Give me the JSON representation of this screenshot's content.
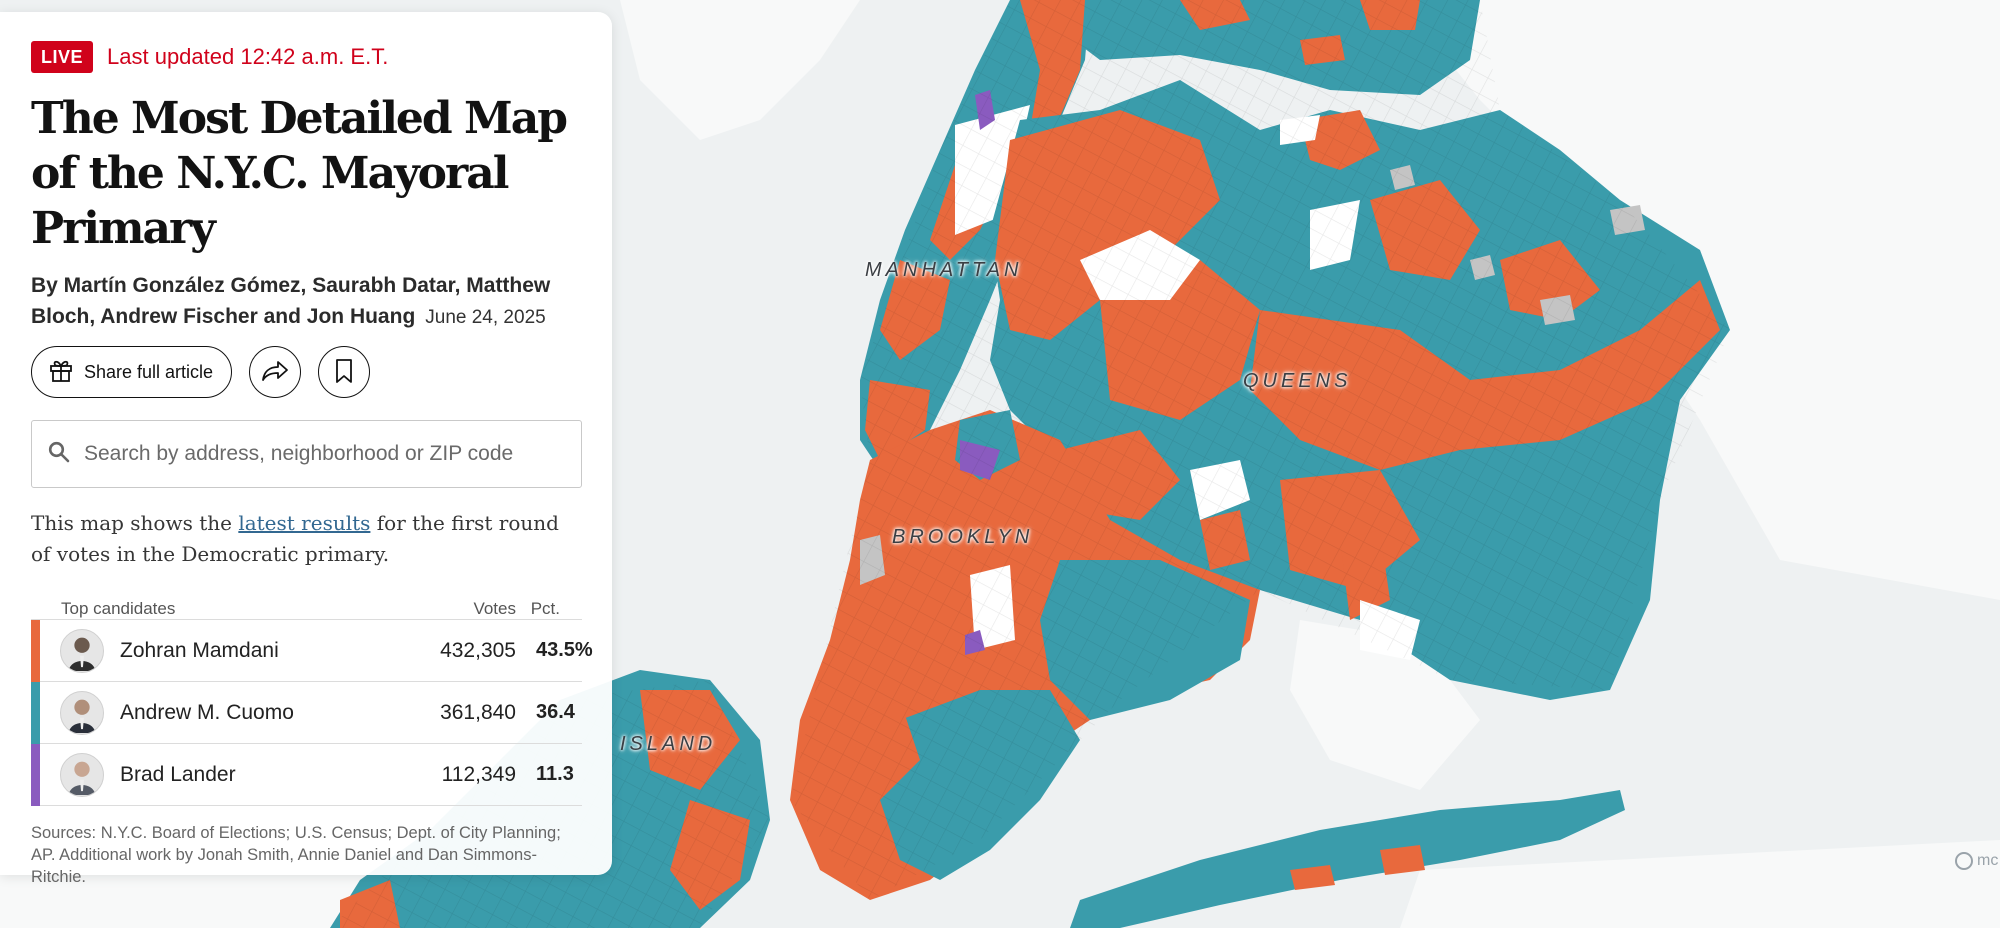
{
  "map": {
    "labels": {
      "manhattan": "MANHATTAN",
      "queens": "QUEENS",
      "brooklyn": "BROOKLYN",
      "staten_island": "ISLAND"
    },
    "attribution": "mc",
    "colors": {
      "mamdani": "#e8693d",
      "cuomo": "#3a9cab",
      "lander": "#8a5bbf",
      "no_data": "#c4c4c4",
      "water": "#eef1f2",
      "land": "#f8f9f9"
    }
  },
  "header": {
    "live_badge": "LIVE",
    "updated": "Last updated 12:42 a.m. E.T.",
    "title": "The Most Detailed Map of the N.Y.C. Mayoral Primary",
    "byline": "By Martín González Gómez, Saurabh Datar, Matthew Bloch, Andrew Fischer and Jon Huang",
    "date": "June 24, 2025"
  },
  "actions": {
    "share_label": "Share full article",
    "share_icon": "gift-icon",
    "forward_icon": "share-arrow-icon",
    "bookmark_icon": "bookmark-icon"
  },
  "search": {
    "placeholder": "Search by address, neighborhood or ZIP code",
    "value": ""
  },
  "intro": {
    "before": "This map shows the ",
    "link": "latest results",
    "after": " for the first round of votes in the Democratic primary."
  },
  "results": {
    "headers": {
      "name": "Top candidates",
      "votes": "Votes",
      "pct": "Pct."
    },
    "candidates": [
      {
        "name": "Zohran Mamdani",
        "votes": "432,305",
        "pct": "43.5%",
        "color": "#e8693d"
      },
      {
        "name": "Andrew M. Cuomo",
        "votes": "361,840",
        "pct": "36.4",
        "color": "#3a9cab"
      },
      {
        "name": "Brad Lander",
        "votes": "112,349",
        "pct": "11.3",
        "color": "#8a5bbf"
      }
    ]
  },
  "sources": "Sources: N.Y.C. Board of Elections; U.S. Census; Dept. of City Planning; AP.  Additional work by Jonah Smith, Annie Daniel and Dan Simmons-Ritchie."
}
